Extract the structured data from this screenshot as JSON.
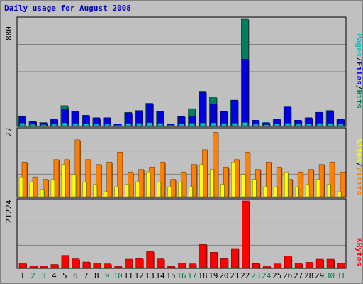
{
  "title": "Daily usage for August 2008",
  "colors": {
    "pages": "#00c8c8",
    "files": "#0000e0",
    "hits": "#008060",
    "sites": "#ffff00",
    "visits": "#ff8000",
    "kbytes": "#ff0000",
    "weekend_day": "#008040",
    "weekday": "#000000"
  },
  "legend": {
    "pages": "Pages",
    "files": "Files",
    "hits": "Hits",
    "sites": "Sites",
    "visits": "Visits",
    "kbytes": "KBytes",
    "sep": "/"
  },
  "chart_data": [
    {
      "type": "bar",
      "title": "Daily usage for August 2008",
      "panel": "hits-files-pages",
      "ymax_label": "880",
      "ylim": [
        0,
        880
      ],
      "grid": true,
      "legend_position": "right",
      "categories": [
        "1",
        "2",
        "3",
        "4",
        "5",
        "6",
        "7",
        "8",
        "9",
        "10",
        "11",
        "12",
        "13",
        "14",
        "15",
        "16",
        "17",
        "18",
        "19",
        "20",
        "21",
        "22",
        "23",
        "24",
        "25",
        "26",
        "27",
        "28",
        "29",
        "30",
        "31"
      ],
      "weekend_days": [
        "2",
        "3",
        "9",
        "10",
        "16",
        "17",
        "23",
        "24",
        "30",
        "31"
      ],
      "series": [
        {
          "name": "Hits",
          "values": [
            75,
            35,
            25,
            55,
            165,
            120,
            85,
            65,
            65,
            15,
            110,
            125,
            185,
            120,
            15,
            75,
            140,
            285,
            235,
            115,
            210,
            880,
            45,
            25,
            55,
            160,
            45,
            65,
            110,
            125,
            55
          ]
        },
        {
          "name": "Files",
          "values": [
            75,
            35,
            25,
            55,
            135,
            120,
            85,
            65,
            65,
            15,
            105,
            120,
            180,
            115,
            15,
            75,
            75,
            275,
            180,
            115,
            210,
            550,
            45,
            25,
            55,
            160,
            45,
            65,
            110,
            115,
            55
          ]
        },
        {
          "name": "Pages",
          "values": [
            20,
            10,
            8,
            12,
            22,
            18,
            16,
            12,
            12,
            4,
            18,
            20,
            24,
            18,
            4,
            14,
            20,
            22,
            22,
            18,
            20,
            26,
            12,
            8,
            14,
            20,
            12,
            14,
            18,
            18,
            12
          ]
        }
      ]
    },
    {
      "type": "bar",
      "panel": "visits-sites",
      "ymax_label": "27",
      "ylim": [
        0,
        27
      ],
      "grid": true,
      "legend_position": "right",
      "categories": [
        "1",
        "2",
        "3",
        "4",
        "5",
        "6",
        "7",
        "8",
        "9",
        "10",
        "11",
        "12",
        "13",
        "14",
        "15",
        "16",
        "17",
        "18",
        "19",
        "20",
        "21",
        "22",
        "23",
        "24",
        "25",
        "26",
        "27",
        "28",
        "29",
        "30",
        "31"
      ],
      "series": [
        {
          "name": "Visits",
          "values": [
            14,
            8,
            7,
            15,
            15,
            23,
            15,
            13,
            14,
            18,
            10,
            11,
            12,
            14,
            7,
            10,
            13,
            19,
            26,
            12,
            15,
            18,
            11,
            14,
            12,
            7,
            10,
            11,
            13,
            14,
            10
          ]
        },
        {
          "name": "Sites",
          "values": [
            8,
            6,
            3,
            7,
            13,
            9,
            6,
            5,
            2,
            4,
            5,
            6,
            10,
            6,
            4,
            6,
            4,
            13,
            11,
            5,
            14,
            9,
            7,
            4,
            4,
            10,
            4,
            5,
            7,
            5,
            2
          ]
        }
      ]
    },
    {
      "type": "bar",
      "panel": "kbytes",
      "ymax_label": "21224",
      "ylim": [
        0,
        21224
      ],
      "grid": true,
      "legend_position": "right",
      "categories": [
        "1",
        "2",
        "3",
        "4",
        "5",
        "6",
        "7",
        "8",
        "9",
        "10",
        "11",
        "12",
        "13",
        "14",
        "15",
        "16",
        "17",
        "18",
        "19",
        "20",
        "21",
        "22",
        "23",
        "24",
        "25",
        "26",
        "27",
        "28",
        "29",
        "30",
        "31"
      ],
      "series": [
        {
          "name": "KBytes",
          "values": [
            1450,
            600,
            600,
            1000,
            3900,
            2800,
            1800,
            1500,
            1200,
            350,
            2700,
            2900,
            5100,
            2800,
            400,
            1500,
            1200,
            7400,
            4900,
            2900,
            6100,
            21224,
            1300,
            500,
            1200,
            3700,
            1250,
            1700,
            2700,
            2700,
            1400
          ]
        }
      ]
    }
  ]
}
